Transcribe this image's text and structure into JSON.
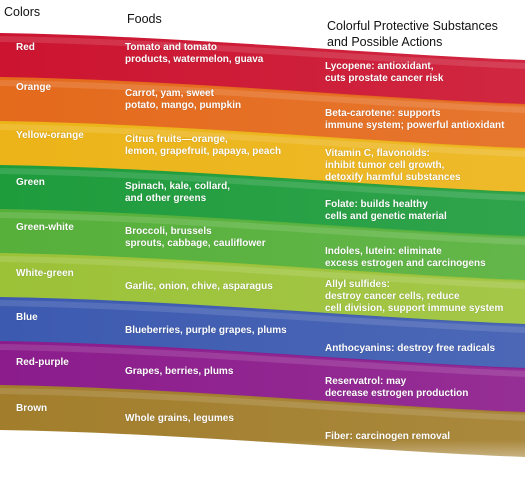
{
  "headers": {
    "colors": "Colors",
    "foods": "Foods",
    "substances": "Colorful Protective Substances\nand Possible Actions"
  },
  "rows": [
    {
      "color": "Red",
      "hex": "#cc1430",
      "foods": "Tomato and tomato\nproducts, watermelon, guava",
      "action": "Lycopene: antioxidant,\ncuts prostate cancer risk"
    },
    {
      "color": "Orange",
      "hex": "#e46a1c",
      "foods": "Carrot, yam, sweet\npotato, mango, pumpkin",
      "action": "Beta-carotene: supports\nimmune system; powerful antioxidant"
    },
    {
      "color": "Yellow-orange",
      "hex": "#ecb418",
      "foods": "Citrus fruits—orange,\nlemon, grapefruit, papaya, peach",
      "action": "Vitamin C, flavonoids:\ninhibit tumor cell growth,\ndetoxify harmful substances"
    },
    {
      "color": "Green",
      "hex": "#1e9c3c",
      "foods": "Spinach, kale, collard,\nand other greens",
      "action": "Folate: builds healthy\ncells and genetic material"
    },
    {
      "color": "Green-white",
      "hex": "#56b03a",
      "foods": "Broccoli, brussels\nsprouts, cabbage, cauliflower",
      "action": "Indoles, lutein: eliminate\nexcess estrogen and carcinogens"
    },
    {
      "color": "White-green",
      "hex": "#9cc238",
      "foods": "Garlic, onion, chive, asparagus",
      "action": "Allyl sulfides:\ndestroy cancer cells, reduce\ncell division, support immune system"
    },
    {
      "color": "Blue",
      "hex": "#3c5ab0",
      "foods": "Blueberries, purple grapes, plums",
      "action": "Anthocyanins: destroy free radicals"
    },
    {
      "color": "Red-purple",
      "hex": "#8c1c8c",
      "foods": "Grapes, berries, plums",
      "action": "Reservatrol: may\ndecrease estrogen production"
    },
    {
      "color": "Brown",
      "hex": "#a27e2c",
      "foods": "Whole grains, legumes",
      "action": "Fiber: carcinogen removal"
    }
  ]
}
